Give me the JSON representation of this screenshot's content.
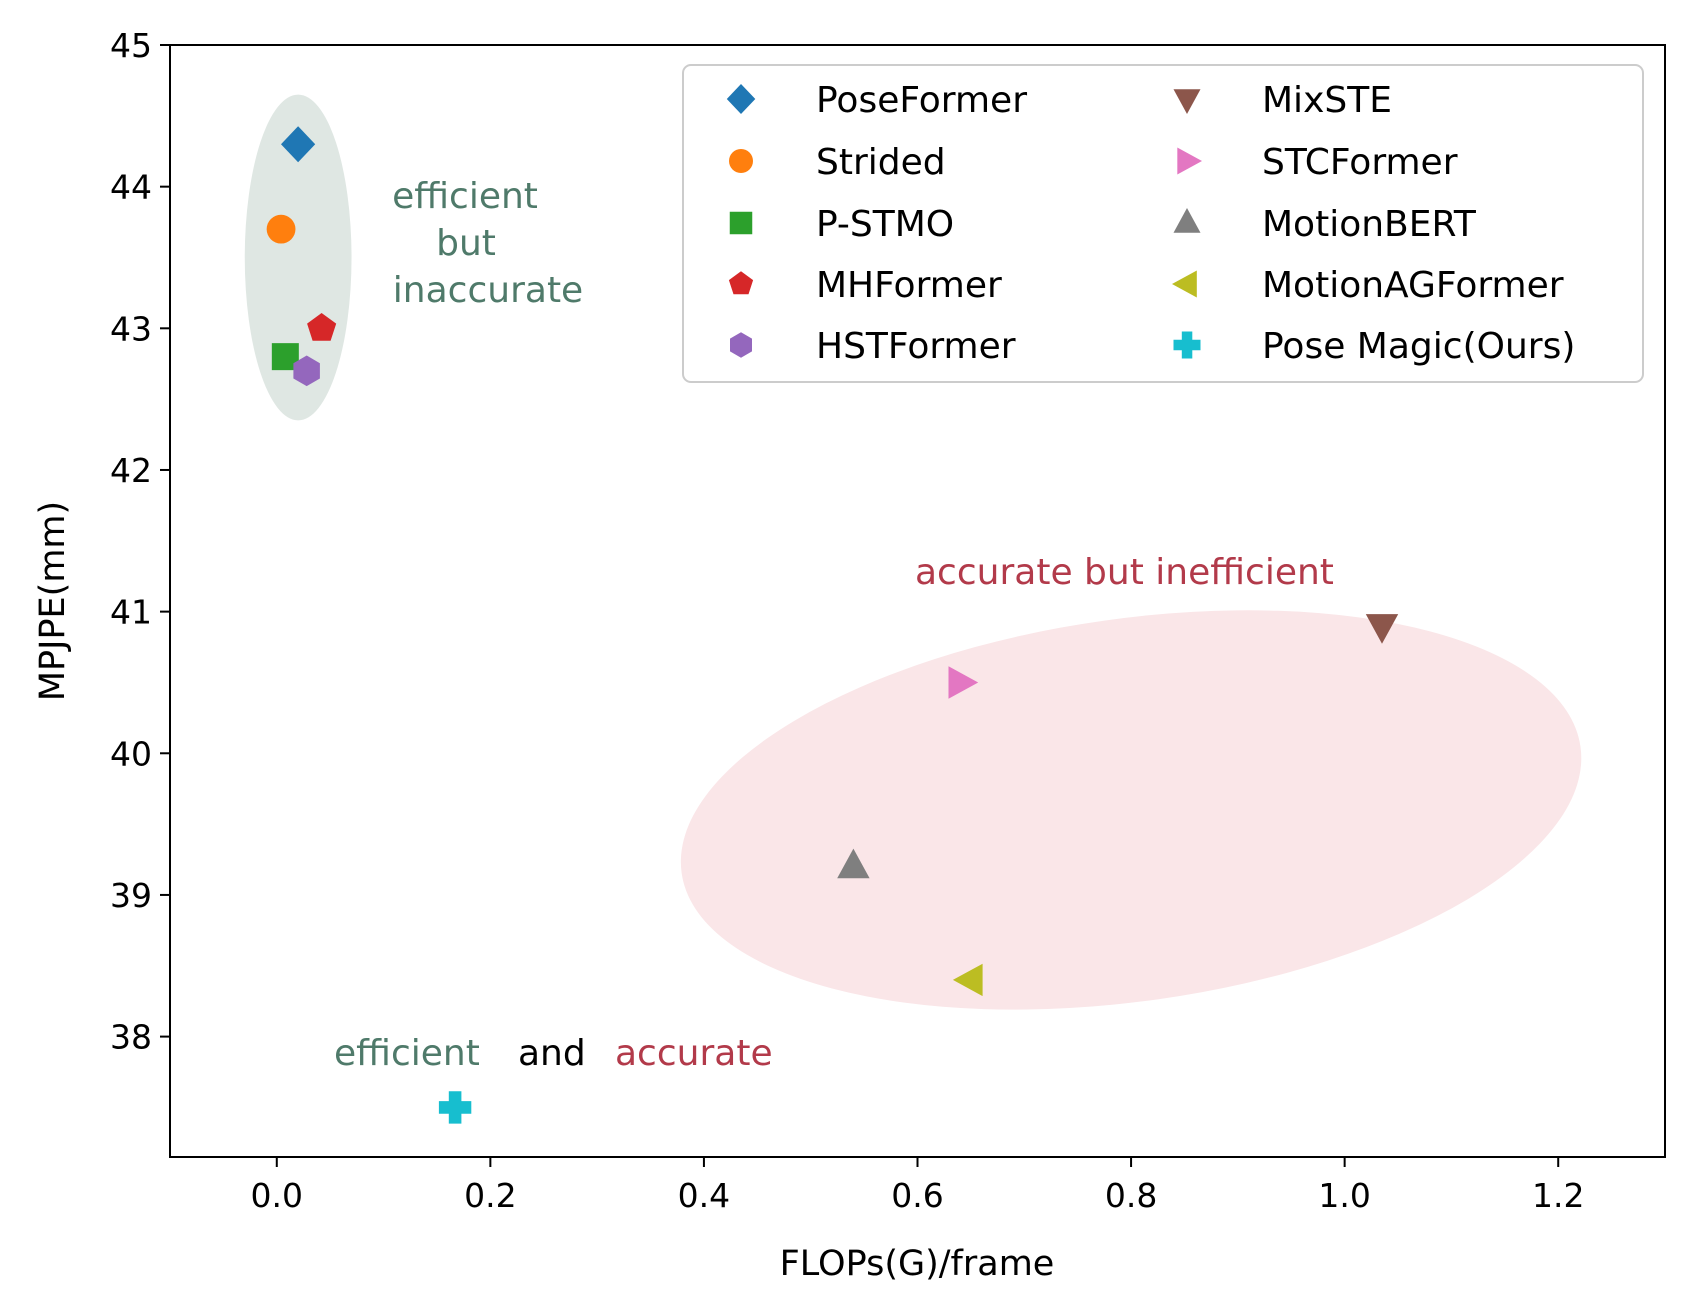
{
  "chart_data": {
    "type": "scatter",
    "xlabel": "FLOPs(G)/frame",
    "ylabel": "MPJPE(mm)",
    "xlim": [
      -0.1,
      1.3
    ],
    "ylim": [
      37.15,
      45
    ],
    "xticks": [
      0.0,
      0.2,
      0.4,
      0.6,
      0.8,
      1.0,
      1.2
    ],
    "xtick_labels": [
      "0.0",
      "0.2",
      "0.4",
      "0.6",
      "0.8",
      "1.0",
      "1.2"
    ],
    "yticks": [
      38,
      39,
      40,
      41,
      42,
      43,
      44,
      45
    ],
    "ytick_labels": [
      "38",
      "39",
      "40",
      "41",
      "42",
      "43",
      "44",
      "45"
    ],
    "grid": false,
    "legend_position": "top-right",
    "series": [
      {
        "name": "PoseFormer",
        "marker": "diamond",
        "color": "#1f77b4",
        "x": 0.02,
        "y": 44.3
      },
      {
        "name": "Strided",
        "marker": "circle",
        "color": "#ff7f0e",
        "x": 0.004,
        "y": 43.7
      },
      {
        "name": "P-STMO",
        "marker": "square",
        "color": "#2ca02c",
        "x": 0.008,
        "y": 42.8
      },
      {
        "name": "MHFormer",
        "marker": "pentagon",
        "color": "#d62728",
        "x": 0.042,
        "y": 43.0
      },
      {
        "name": "HSTFormer",
        "marker": "hexagon",
        "color": "#9467bd",
        "x": 0.028,
        "y": 42.7
      },
      {
        "name": "MixSTE",
        "marker": "triangle-down",
        "color": "#8c564b",
        "x": 1.035,
        "y": 40.9
      },
      {
        "name": "STCFormer",
        "marker": "triangle-right",
        "color": "#e377c2",
        "x": 0.64,
        "y": 40.5
      },
      {
        "name": "MotionBERT",
        "marker": "triangle-up",
        "color": "#7f7f7f",
        "x": 0.54,
        "y": 39.2
      },
      {
        "name": "MotionAGFormer",
        "marker": "triangle-left",
        "color": "#bcbd22",
        "x": 0.65,
        "y": 38.4
      },
      {
        "name": "Pose Magic(Ours)",
        "marker": "plus",
        "color": "#17becf",
        "x": 0.167,
        "y": 37.5
      }
    ],
    "regions": [
      {
        "name": "efficient-region",
        "color": "#dfe7e3",
        "cx": 0.02,
        "cy": 43.5,
        "rx": 0.05,
        "ry": 1.15,
        "rotation_deg": 0
      },
      {
        "name": "accurate-region",
        "color": "#fae6e8",
        "cx": 0.8,
        "cy": 39.6,
        "rx": 0.425,
        "ry": 1.35,
        "rotation_deg": -8
      }
    ],
    "annotations": {
      "efficient_lines": [
        "efficient",
        "but",
        "inaccurate"
      ],
      "accurate_text": "accurate but inefficient",
      "bottom_efficient": "efficient",
      "bottom_and": "and",
      "bottom_accurate": "accurate"
    },
    "annotation_colors": {
      "green": "#4f7a6a",
      "red": "#b23a4a",
      "black": "#000000"
    }
  }
}
